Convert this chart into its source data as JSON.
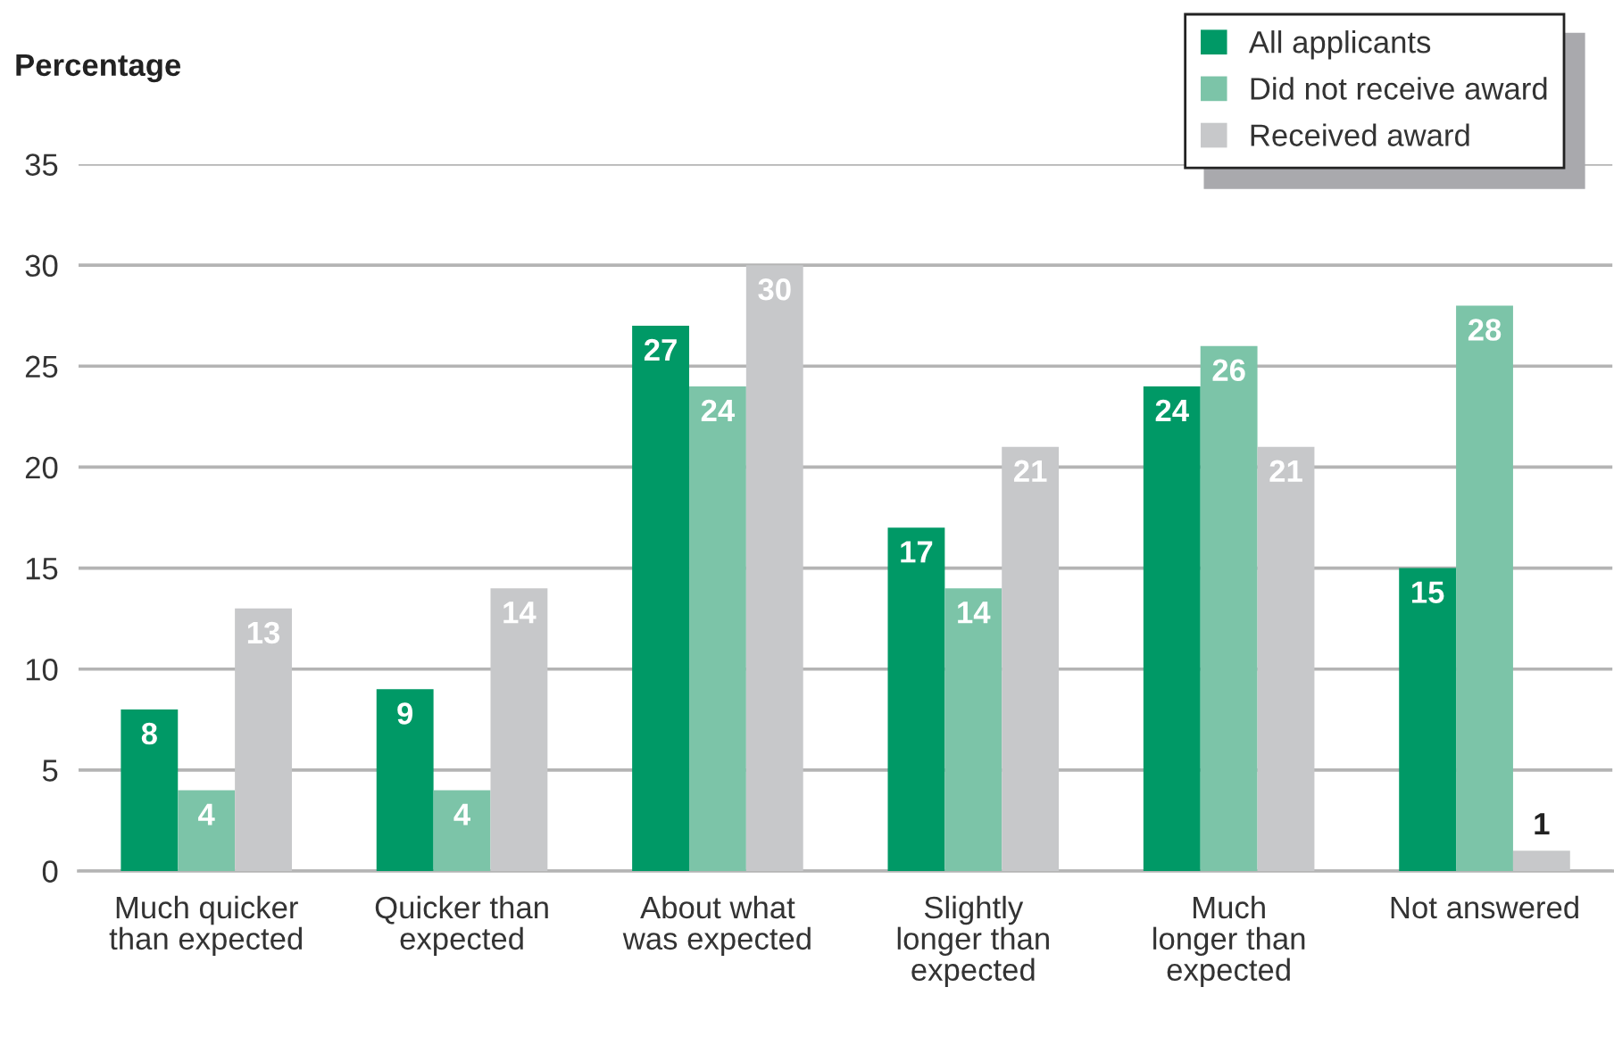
{
  "chart_data": {
    "type": "bar",
    "ylabel": "Percentage",
    "categories": [
      "Much quicker\nthan expected",
      "Quicker than\nexpected",
      "About what\nwas expected",
      "Slightly\nlonger than\nexpected",
      "Much\nlonger than\nexpected",
      "Not answered"
    ],
    "series": [
      {
        "name": "All applicants",
        "color": "#009966",
        "values": [
          8,
          9,
          27,
          17,
          24,
          15
        ]
      },
      {
        "name": "Did not receive award",
        "color": "#7cc4a8",
        "values": [
          4,
          4,
          24,
          14,
          26,
          28
        ]
      },
      {
        "name": "Received award",
        "color": "#c7c8ca",
        "values": [
          13,
          14,
          30,
          21,
          21,
          1
        ]
      }
    ],
    "ylim": [
      0,
      35
    ],
    "yticks": [
      0,
      5,
      10,
      15,
      20,
      25,
      30,
      35
    ],
    "grid": "y",
    "legend": "top right",
    "data_labels": true
  }
}
